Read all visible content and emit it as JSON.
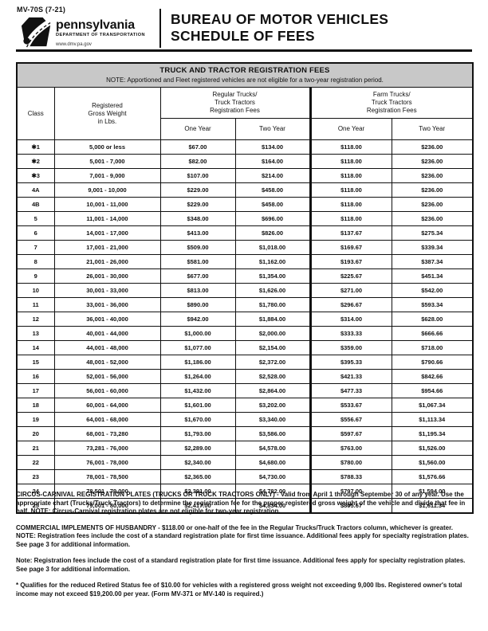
{
  "colors": {
    "text": "#111111",
    "title_bar_bg": "#c8c8c8"
  },
  "header": {
    "form_number": "MV-70S (7-21)",
    "agency_name": "pennsylvania",
    "agency_dept": "DEPARTMENT OF TRANSPORTATION",
    "agency_url": "www.dmv.pa.gov",
    "title_line1": "BUREAU OF MOTOR VEHICLES",
    "title_line2": "SCHEDULE OF FEES"
  },
  "table": {
    "title": "TRUCK AND TRACTOR REGISTRATION FEES",
    "note": "NOTE: Apportioned and Fleet registered vehicles are not eligible for a two-year registration period.",
    "columns": {
      "class": "Class",
      "weight": "Registered\nGross Weight\nin Lbs.",
      "regular_group": "Regular Trucks/\nTruck Tractors\nRegistration Fees",
      "farm_group": "Farm Trucks/\nTruck Tractors\nRegistration Fees",
      "one_year": "One Year",
      "two_year": "Two Year"
    },
    "rows": [
      [
        "✱1",
        "5,000 or less",
        "$67.00",
        "$134.00",
        "$118.00",
        "$236.00"
      ],
      [
        "✱2",
        "5,001 - 7,000",
        "$82.00",
        "$164.00",
        "$118.00",
        "$236.00"
      ],
      [
        "✱3",
        "7,001 - 9,000",
        "$107.00",
        "$214.00",
        "$118.00",
        "$236.00"
      ],
      [
        "4A",
        "9,001 - 10,000",
        "$229.00",
        "$458.00",
        "$118.00",
        "$236.00"
      ],
      [
        "4B",
        "10,001 - 11,000",
        "$229.00",
        "$458.00",
        "$118.00",
        "$236.00"
      ],
      [
        "5",
        "11,001 - 14,000",
        "$348.00",
        "$696.00",
        "$118.00",
        "$236.00"
      ],
      [
        "6",
        "14,001 - 17,000",
        "$413.00",
        "$826.00",
        "$137.67",
        "$275.34"
      ],
      [
        "7",
        "17,001 - 21,000",
        "$509.00",
        "$1,018.00",
        "$169.67",
        "$339.34"
      ],
      [
        "8",
        "21,001 - 26,000",
        "$581.00",
        "$1,162.00",
        "$193.67",
        "$387.34"
      ],
      [
        "9",
        "26,001 - 30,000",
        "$677.00",
        "$1,354.00",
        "$225.67",
        "$451.34"
      ],
      [
        "10",
        "30,001 - 33,000",
        "$813.00",
        "$1,626.00",
        "$271.00",
        "$542.00"
      ],
      [
        "11",
        "33,001 - 36,000",
        "$890.00",
        "$1,780.00",
        "$296.67",
        "$593.34"
      ],
      [
        "12",
        "36,001 - 40,000",
        "$942.00",
        "$1,884.00",
        "$314.00",
        "$628.00"
      ],
      [
        "13",
        "40,001 - 44,000",
        "$1,000.00",
        "$2,000.00",
        "$333.33",
        "$666.66"
      ],
      [
        "14",
        "44,001 - 48,000",
        "$1,077.00",
        "$2,154.00",
        "$359.00",
        "$718.00"
      ],
      [
        "15",
        "48,001 - 52,000",
        "$1,186.00",
        "$2,372.00",
        "$395.33",
        "$790.66"
      ],
      [
        "16",
        "52,001 - 56,000",
        "$1,264.00",
        "$2,528.00",
        "$421.33",
        "$842.66"
      ],
      [
        "17",
        "56,001 - 60,000",
        "$1,432.00",
        "$2,864.00",
        "$477.33",
        "$954.66"
      ],
      [
        "18",
        "60,001 - 64,000",
        "$1,601.00",
        "$3,202.00",
        "$533.67",
        "$1,067.34"
      ],
      [
        "19",
        "64,001 - 68,000",
        "$1,670.00",
        "$3,340.00",
        "$556.67",
        "$1,113.34"
      ],
      [
        "20",
        "68,001 - 73,280",
        "$1,793.00",
        "$3,586.00",
        "$597.67",
        "$1,195.34"
      ],
      [
        "21",
        "73,281 - 76,000",
        "$2,289.00",
        "$4,578.00",
        "$763.00",
        "$1,526.00"
      ],
      [
        "22",
        "76,001 - 78,000",
        "$2,340.00",
        "$4,680.00",
        "$780.00",
        "$1,560.00"
      ],
      [
        "23",
        "78,001 - 78,500",
        "$2,365.00",
        "$4,730.00",
        "$788.33",
        "$1,576.66"
      ],
      [
        "24",
        "78,501 - 79,000",
        "$2,391.00",
        "$4,782.00",
        "$797.00",
        "$1,594.00"
      ],
      [
        "25",
        "79,001 - 80,000",
        "$2,417.00",
        "$4,834.00",
        "$805.67",
        "$1,611.34"
      ]
    ]
  },
  "paragraphs": {
    "circus_carnival": "CIRCUS-CARNIVAL REGISTRATION PLATES (TRUCKS OR TRUCK TRACTORS ONLY) - Valid from April 1 through September 30 of any year. Use the appropriate chart (Trucks/Truck Tractors) to determine the registration fee for the proper registered gross weight of the vehicle and divide that fee in half. NOTE: Circus-Carnival registration plates are not eligible for two-year registration.",
    "husbandry": "COMMERCIAL IMPLEMENTS OF HUSBANDRY - $118.00 or one-half of the fee in the Regular Trucks/Truck Tractors column, whichever is greater. NOTE: Registration fees include the cost of a standard registration plate for first time issuance. Additional fees apply for specialty registration plates. See page 3 for additional information.",
    "plate_note": "Note: Registration fees include the cost of a standard registration plate for first time issuance. Additional fees apply for specialty registration plates. See page 3 for additional information.",
    "retired_footnote": "* Qualifies for the reduced Retired Status fee of $10.00 for vehicles with a registered gross weight not exceeding 9,000 lbs. Registered owner's total income may not exceed $19,200.00 per year. (Form MV-371 or MV-140 is required.)"
  }
}
